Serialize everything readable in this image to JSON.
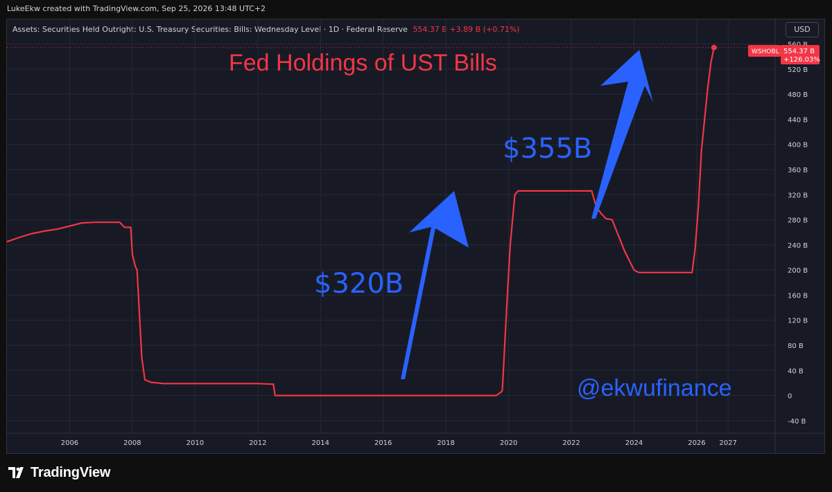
{
  "header": {
    "author_line": "LukeEkw created with TradingView.com, Sep 25, 2026 13:48 UTC+2",
    "legend_title": "Assets: Securities Held Outright: U.S. Treasury Securities: Bills: Wednesday Level · 1D · Federal Reserve",
    "legend_values": "554.37 B  +3.89 B (+0.71%)",
    "currency": "USD"
  },
  "annotations": {
    "title": "Fed Holdings of UST Bills",
    "label_320": "$320B",
    "label_355": "$355B",
    "handle": "@ekwufinance"
  },
  "price_tag": {
    "symbol": "WSHOBL",
    "value": "554.37 B",
    "change": "+126.03%"
  },
  "footer": {
    "brand": "TradingView"
  },
  "colors": {
    "series": "#f23645",
    "annotation_blue": "#2962ff",
    "title_red": "#f23645",
    "background": "#171a25",
    "grid": "#262936",
    "axis_text": "#d1d4dc"
  },
  "chart_data": {
    "type": "line",
    "series": [
      {
        "name": "WSHOBL",
        "points": [
          [
            2004.0,
            245
          ],
          [
            2004.4,
            252
          ],
          [
            2004.8,
            258
          ],
          [
            2005.2,
            262
          ],
          [
            2005.6,
            265
          ],
          [
            2006.0,
            270
          ],
          [
            2006.4,
            275
          ],
          [
            2006.8,
            276
          ],
          [
            2007.2,
            276
          ],
          [
            2007.6,
            276
          ],
          [
            2007.75,
            268
          ],
          [
            2007.95,
            268
          ],
          [
            2008.0,
            225
          ],
          [
            2008.1,
            205
          ],
          [
            2008.15,
            200
          ],
          [
            2008.3,
            60
          ],
          [
            2008.4,
            25
          ],
          [
            2008.6,
            21
          ],
          [
            2009.0,
            19
          ],
          [
            2010.0,
            19
          ],
          [
            2011.0,
            19
          ],
          [
            2012.0,
            19
          ],
          [
            2012.5,
            18
          ],
          [
            2012.55,
            0
          ],
          [
            2013.0,
            0
          ],
          [
            2014.0,
            0
          ],
          [
            2015.0,
            0
          ],
          [
            2016.0,
            0
          ],
          [
            2017.0,
            0
          ],
          [
            2018.0,
            0
          ],
          [
            2019.0,
            0
          ],
          [
            2019.6,
            0
          ],
          [
            2019.75,
            5
          ],
          [
            2019.8,
            8
          ],
          [
            2019.95,
            150
          ],
          [
            2020.05,
            240
          ],
          [
            2020.2,
            320
          ],
          [
            2020.3,
            326
          ],
          [
            2021.0,
            326
          ],
          [
            2022.0,
            326
          ],
          [
            2022.65,
            326
          ],
          [
            2022.8,
            300
          ],
          [
            2022.95,
            290
          ],
          [
            2023.1,
            282
          ],
          [
            2023.3,
            280
          ],
          [
            2023.5,
            255
          ],
          [
            2023.7,
            230
          ],
          [
            2023.85,
            215
          ],
          [
            2024.0,
            200
          ],
          [
            2024.15,
            196
          ],
          [
            2024.5,
            196
          ],
          [
            2025.0,
            196
          ],
          [
            2025.5,
            196
          ],
          [
            2025.85,
            196
          ],
          [
            2025.95,
            235
          ],
          [
            2026.05,
            300
          ],
          [
            2026.15,
            390
          ],
          [
            2026.25,
            440
          ],
          [
            2026.35,
            490
          ],
          [
            2026.45,
            530
          ],
          [
            2026.55,
            554.37
          ]
        ]
      }
    ],
    "x_ticks": [
      "2006",
      "2008",
      "2010",
      "2012",
      "2014",
      "2016",
      "2018",
      "2020",
      "2022",
      "2024",
      "2026",
      "2027"
    ],
    "y_ticks": [
      "-40 B",
      "0",
      "40 B",
      "80 B",
      "120 B",
      "160 B",
      "200 B",
      "240 B",
      "280 B",
      "320 B",
      "360 B",
      "400 B",
      "440 B",
      "480 B",
      "520 B",
      "560 B"
    ],
    "y_unit": "B",
    "xlim": [
      2004.0,
      2028.5
    ],
    "ylim": [
      -60,
      575
    ],
    "last_value": 554.37,
    "grid": true,
    "legend_placement": "top-left"
  }
}
